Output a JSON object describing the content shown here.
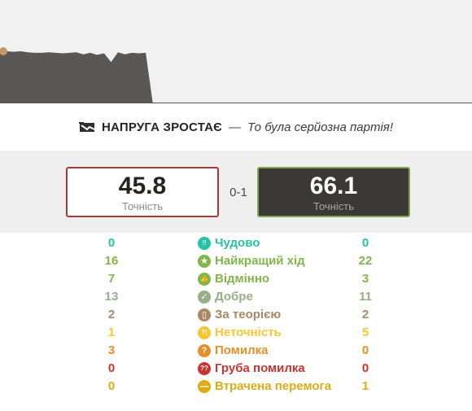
{
  "tagline": {
    "title": "НАПРУГА ЗРОСТАЄ",
    "dash": "—",
    "subtitle": "То була серйозна партія!"
  },
  "scores": {
    "white": {
      "value": "45.8",
      "label": "Точність"
    },
    "black": {
      "value": "66.1",
      "label": "Точність"
    },
    "result": "0-1"
  },
  "stats": [
    {
      "white": "0",
      "name": "Чудово",
      "black": "0",
      "color": "#26c2a3",
      "icon": "brilliant-icon",
      "glyph": "!!"
    },
    {
      "white": "16",
      "name": "Найкращий хід",
      "black": "22",
      "color": "#81b64c",
      "icon": "star-icon",
      "glyph": "★"
    },
    {
      "white": "7",
      "name": "Відмінно",
      "black": "3",
      "color": "#81b64c",
      "icon": "thumbs-up-icon",
      "glyph": "👍"
    },
    {
      "white": "13",
      "name": "Добре",
      "black": "11",
      "color": "#95af8a",
      "icon": "check-icon",
      "glyph": "✓"
    },
    {
      "white": "2",
      "name": "За теорією",
      "black": "2",
      "color": "#a88865",
      "icon": "book-icon",
      "glyph": "▯"
    },
    {
      "white": "1",
      "name": "Неточність",
      "black": "5",
      "color": "#f7c631",
      "icon": "inaccuracy-icon",
      "glyph": "?!"
    },
    {
      "white": "3",
      "name": "Помилка",
      "black": "0",
      "color": "#e58f2a",
      "icon": "mistake-icon",
      "glyph": "?"
    },
    {
      "white": "0",
      "name": "Груба помилка",
      "black": "0",
      "color": "#ca3431",
      "icon": "blunder-icon",
      "glyph": "??"
    },
    {
      "white": "0",
      "name": "Втрачена перемога",
      "black": "1",
      "color": "#dbac16",
      "icon": "miss-icon",
      "glyph": "—"
    }
  ],
  "graph": {
    "advantage": [
      0.0,
      0.0,
      -0.1,
      0.0,
      -0.2,
      -0.3,
      -0.3,
      -0.2,
      -0.3,
      -0.4,
      -0.3,
      -0.2,
      -0.6,
      -0.3,
      -0.7,
      -0.4,
      -2.1,
      -0.2,
      -0.6,
      -0.3,
      -0.4,
      -0.3,
      -10,
      -10,
      -10,
      -10,
      -10,
      -10,
      -10,
      -10,
      -10,
      -10,
      -10,
      -10,
      -10,
      -10,
      -10,
      -10,
      -10,
      -10,
      -10,
      -10,
      -10,
      -10,
      -10,
      -10,
      -10,
      -10,
      -10,
      -10,
      -10,
      -10,
      -10,
      -10,
      -10,
      -10,
      -10,
      -10,
      -10,
      -10,
      -10,
      -10,
      -10,
      -10,
      -10,
      -10,
      -10,
      -10,
      -10
    ],
    "white_color": "#f1f1f1",
    "black_color": "#5a5856",
    "marker_color": "#c09b69"
  }
}
